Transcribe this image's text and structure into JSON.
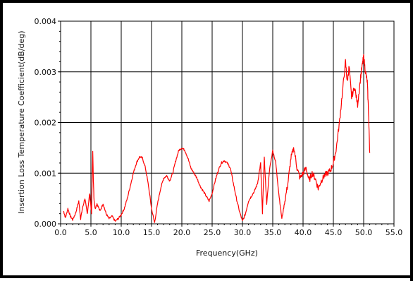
{
  "chart_data": {
    "type": "line",
    "title": "",
    "xlabel": "Frequency(GHz)",
    "ylabel": "Insertion Loss Temperature Coefficient(dB/deg)",
    "xlim": [
      0.0,
      55.0
    ],
    "ylim": [
      0.0,
      0.004
    ],
    "x_ticks": [
      "0.0",
      "5.0",
      "10.0",
      "15.0",
      "20.0",
      "25.0",
      "30.0",
      "35.0",
      "40.0",
      "45.0",
      "50.0",
      "55.0"
    ],
    "y_ticks": [
      "0.000",
      "0.001",
      "0.002",
      "0.003",
      "0.004"
    ],
    "grid": true,
    "legend": "none",
    "series": [
      {
        "color": "#ff0000",
        "x": [
          0.5,
          0.8,
          1.2,
          1.6,
          2.0,
          2.5,
          3.0,
          3.3,
          3.6,
          4.0,
          4.4,
          4.8,
          5.1,
          5.3,
          5.4,
          5.5,
          5.7,
          6.0,
          6.5,
          7.0,
          7.5,
          8.0,
          8.5,
          9.0,
          9.5,
          10.0,
          10.5,
          11.0,
          11.5,
          12.0,
          12.5,
          13.0,
          13.5,
          14.0,
          14.5,
          15.0,
          15.5,
          16.0,
          16.5,
          17.0,
          17.5,
          18.0,
          18.5,
          19.0,
          19.5,
          20.0,
          20.5,
          21.0,
          21.5,
          22.0,
          22.5,
          23.0,
          23.5,
          24.0,
          24.5,
          25.0,
          25.5,
          26.0,
          26.5,
          27.0,
          27.5,
          28.0,
          28.5,
          29.0,
          29.5,
          30.0,
          30.5,
          31.0,
          31.5,
          32.0,
          32.5,
          33.0,
          33.3,
          33.6,
          34.0,
          34.5,
          35.0,
          35.5,
          36.0,
          36.5,
          37.0,
          37.5,
          38.0,
          38.5,
          39.0,
          39.5,
          40.0,
          40.5,
          41.0,
          41.5,
          42.0,
          42.5,
          43.0,
          43.5,
          44.0,
          44.5,
          45.0,
          45.5,
          46.0,
          46.5,
          47.0,
          47.3,
          47.6,
          48.0,
          48.5,
          49.0,
          49.5,
          49.8,
          50.0,
          50.3,
          50.6,
          50.8,
          51.0
        ],
        "y": [
          0.00025,
          0.00012,
          0.0003,
          0.00015,
          8e-05,
          0.00022,
          0.00045,
          0.0001,
          0.0003,
          0.0005,
          0.0002,
          0.0006,
          0.0002,
          0.00145,
          0.0009,
          0.0005,
          0.0003,
          0.0004,
          0.00025,
          0.0004,
          0.0002,
          0.0001,
          0.00015,
          5e-05,
          0.0001,
          0.00018,
          0.0003,
          0.0005,
          0.00075,
          0.001,
          0.0012,
          0.00132,
          0.0013,
          0.0011,
          0.00075,
          0.0003,
          2e-05,
          0.0004,
          0.0007,
          0.0009,
          0.00095,
          0.00085,
          0.001,
          0.00125,
          0.00145,
          0.0015,
          0.00145,
          0.0013,
          0.0011,
          0.001,
          0.0009,
          0.00075,
          0.00065,
          0.00055,
          0.00045,
          0.0006,
          0.00085,
          0.00105,
          0.0012,
          0.00125,
          0.0012,
          0.0011,
          0.0008,
          0.0005,
          0.00025,
          5e-05,
          0.0002,
          0.00045,
          0.00055,
          0.00065,
          0.0008,
          0.0012,
          0.0002,
          0.0013,
          0.0004,
          0.0011,
          0.00145,
          0.0012,
          0.0006,
          0.0001,
          0.00045,
          0.0008,
          0.0013,
          0.0015,
          0.0011,
          0.0009,
          0.001,
          0.0011,
          0.00085,
          0.001,
          0.0009,
          0.0007,
          0.00085,
          0.00095,
          0.001,
          0.00105,
          0.0012,
          0.0015,
          0.002,
          0.0026,
          0.0032,
          0.0028,
          0.0031,
          0.0025,
          0.0027,
          0.00235,
          0.0029,
          0.00315,
          0.0033,
          0.003,
          0.0028,
          0.0022,
          0.0014
        ]
      }
    ]
  }
}
